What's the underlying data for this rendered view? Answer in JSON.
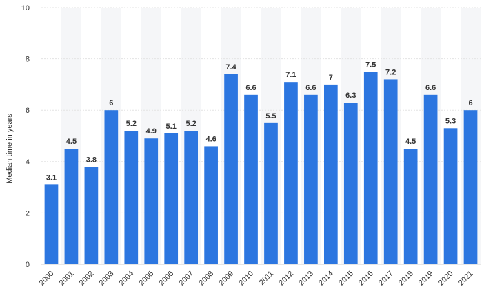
{
  "chart_data": {
    "type": "bar",
    "title": "",
    "xlabel": "",
    "ylabel": "Median time in years",
    "categories": [
      "2000",
      "2001",
      "2002",
      "2003",
      "2004",
      "2005",
      "2006",
      "2007",
      "2008",
      "2009",
      "2010",
      "2011",
      "2012",
      "2013",
      "2014",
      "2015",
      "2016",
      "2017",
      "2018",
      "2019",
      "2020",
      "2021"
    ],
    "values": [
      3.1,
      4.5,
      3.8,
      6,
      5.2,
      4.9,
      5.1,
      5.2,
      4.6,
      7.4,
      6.6,
      5.5,
      7.1,
      6.6,
      7,
      6.3,
      7.5,
      7.2,
      4.5,
      6.6,
      5.3,
      6
    ],
    "value_labels": [
      "3.1",
      "4.5",
      "3.8",
      "6",
      "5.2",
      "4.9",
      "5.1",
      "5.2",
      "4.6",
      "7.4",
      "6.6",
      "5.5",
      "7.1",
      "6.6",
      "7",
      "6.3",
      "7.5",
      "7.2",
      "4.5",
      "6.6",
      "5.3",
      "6"
    ],
    "ylim": [
      0,
      10
    ],
    "yticks": [
      "0",
      "2",
      "4",
      "6",
      "8",
      "10"
    ],
    "grid": true,
    "bar_color": "#2c76e0",
    "alt_band_color": "#f5f6f8"
  }
}
